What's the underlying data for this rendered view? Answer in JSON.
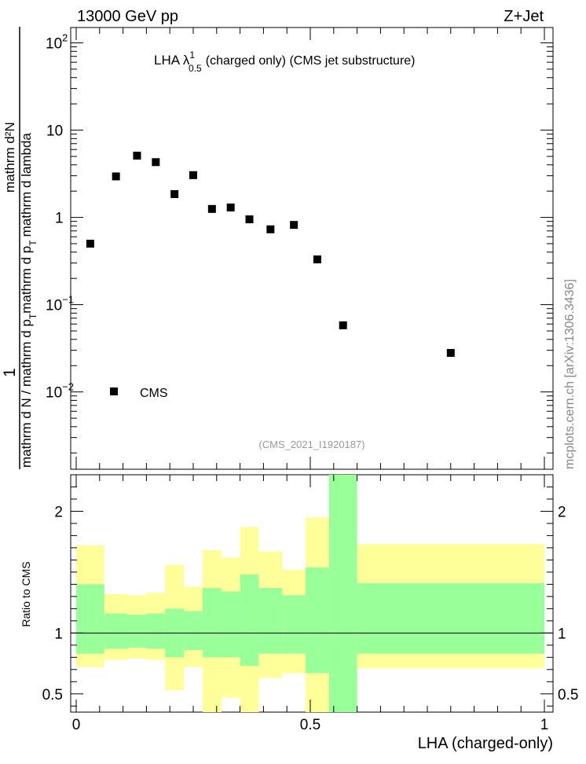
{
  "header": {
    "energy_label": "13000 GeV pp",
    "process_label": "Z+Jet",
    "watermark": "mcplots.cern.ch [arXiv:1306.3436]",
    "analysis_id": "(CMS_2021_I1920187)"
  },
  "chart_data": [
    {
      "type": "scatter",
      "title": "LHA λ",
      "title_sup": "1",
      "title_sub": "0.5",
      "title_suffix": "(charged only) (CMS jet substructure)",
      "yscale": "log",
      "ylim": [
        0.0013,
        150
      ],
      "xlim": [
        0,
        1
      ],
      "ylabel_left": "1",
      "ylabel_num": "mathrm d²N",
      "ylabel_num_sup": "2",
      "ylabel_den_a": "mathrm d N / mathrm d p",
      "ylabel_den_sub_t": "T",
      "ylabel_den_b": "mathrm d p",
      "ylabel_den_c": "mathrm d lambda",
      "yticks": [
        {
          "value": 0.01,
          "base": "10",
          "exp": "−2"
        },
        {
          "value": 0.1,
          "base": "10",
          "exp": "−1"
        },
        {
          "value": 1,
          "base": "1",
          "exp": ""
        },
        {
          "value": 10,
          "base": "10",
          "exp": ""
        },
        {
          "value": 100,
          "base": "10",
          "exp": "2"
        }
      ],
      "legend": [
        {
          "name": "CMS",
          "marker": "square",
          "color": "#000000"
        }
      ],
      "series": [
        {
          "name": "CMS",
          "x": [
            0.03,
            0.085,
            0.13,
            0.17,
            0.21,
            0.25,
            0.29,
            0.33,
            0.37,
            0.415,
            0.465,
            0.515,
            0.57,
            0.8
          ],
          "y": [
            0.5,
            2.95,
            5.1,
            4.3,
            1.85,
            3.05,
            1.25,
            1.3,
            0.95,
            0.73,
            0.82,
            0.33,
            0.058,
            0.028
          ]
        }
      ]
    },
    {
      "type": "area",
      "ylabel": "Ratio to CMS",
      "xlabel": "LHA (charged-only)",
      "ylim": [
        0.35,
        2.3
      ],
      "xlim": [
        0,
        1
      ],
      "xticks": [
        {
          "value": 0,
          "label": "0"
        },
        {
          "value": 0.5,
          "label": "0.5"
        },
        {
          "value": 1,
          "label": "1"
        }
      ],
      "yticks": [
        {
          "value": 0.5,
          "label": "0.5"
        },
        {
          "value": 1,
          "label": "1"
        },
        {
          "value": 2,
          "label": "2"
        }
      ],
      "reference_line": 1,
      "bin_edges": [
        0,
        0.06,
        0.11,
        0.15,
        0.19,
        0.23,
        0.27,
        0.31,
        0.35,
        0.39,
        0.44,
        0.49,
        0.54,
        0.6,
        1.0
      ],
      "band_1sigma": {
        "color": "#99ff99",
        "lower": [
          0.83,
          0.87,
          0.88,
          0.87,
          0.8,
          0.86,
          0.8,
          0.8,
          0.73,
          0.83,
          0.83,
          0.67,
          0.35,
          0.83
        ],
        "upper": [
          1.4,
          1.16,
          1.15,
          1.16,
          1.2,
          1.18,
          1.37,
          1.34,
          1.48,
          1.37,
          1.31,
          1.54,
          2.3,
          1.41
        ]
      },
      "band_2sigma": {
        "color": "#ffff99",
        "lower": [
          0.72,
          0.78,
          0.79,
          0.78,
          0.53,
          0.72,
          0.35,
          0.47,
          0.35,
          0.63,
          0.67,
          0.35,
          0.35,
          0.71
        ],
        "upper": [
          1.72,
          1.32,
          1.31,
          1.33,
          1.56,
          1.38,
          1.68,
          1.62,
          1.87,
          1.67,
          1.52,
          1.95,
          2.3,
          1.73
        ]
      }
    }
  ]
}
